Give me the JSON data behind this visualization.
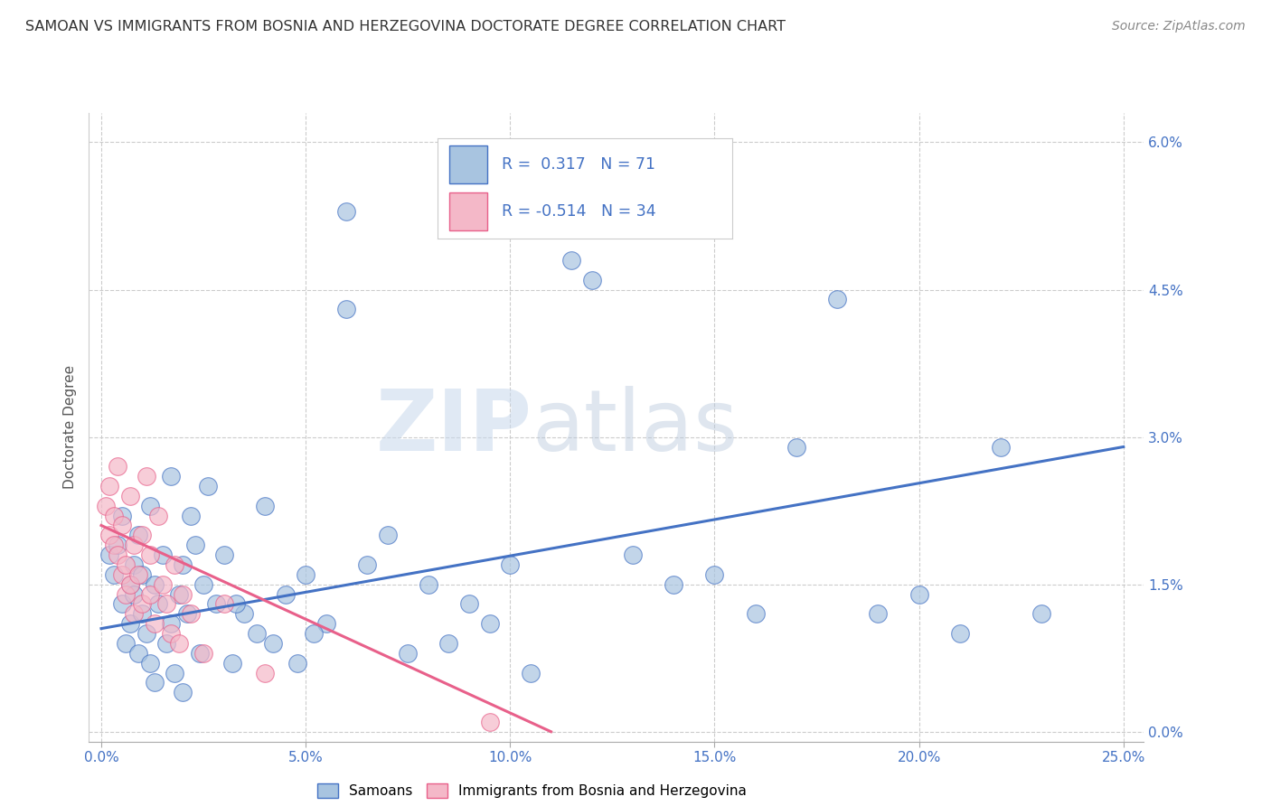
{
  "title": "SAMOAN VS IMMIGRANTS FROM BOSNIA AND HERZEGOVINA DOCTORATE DEGREE CORRELATION CHART",
  "source": "Source: ZipAtlas.com",
  "xlabel_vals": [
    0.0,
    5.0,
    10.0,
    15.0,
    20.0,
    25.0
  ],
  "ylabel": "Doctorate Degree",
  "ylabel_vals": [
    0.0,
    1.5,
    3.0,
    4.5,
    6.0
  ],
  "xlim": [
    -0.3,
    25.5
  ],
  "ylim": [
    -0.1,
    6.3
  ],
  "blue_R": 0.317,
  "blue_N": 71,
  "pink_R": -0.514,
  "pink_N": 34,
  "blue_color": "#a8c4e0",
  "pink_color": "#f4b8c8",
  "blue_line_color": "#4472c4",
  "pink_line_color": "#e8608a",
  "legend_label_blue": "Samoans",
  "legend_label_pink": "Immigrants from Bosnia and Herzegovina",
  "watermark_zip": "ZIP",
  "watermark_atlas": "atlas",
  "blue_scatter_x": [
    0.2,
    0.3,
    0.4,
    0.5,
    0.5,
    0.6,
    0.7,
    0.7,
    0.8,
    0.8,
    0.9,
    0.9,
    1.0,
    1.0,
    1.1,
    1.2,
    1.2,
    1.3,
    1.3,
    1.4,
    1.5,
    1.6,
    1.7,
    1.7,
    1.8,
    1.9,
    2.0,
    2.0,
    2.1,
    2.2,
    2.3,
    2.4,
    2.5,
    2.6,
    2.8,
    3.0,
    3.2,
    3.5,
    3.8,
    4.0,
    4.2,
    4.5,
    5.0,
    5.5,
    6.0,
    6.5,
    7.0,
    7.5,
    8.0,
    8.5,
    9.0,
    9.5,
    10.0,
    10.5,
    11.5,
    12.0,
    13.0,
    14.0,
    15.0,
    16.0,
    17.0,
    18.0,
    19.0,
    20.0,
    21.0,
    22.0,
    23.0,
    3.3,
    4.8,
    5.2,
    6.0
  ],
  "blue_scatter_y": [
    1.8,
    1.6,
    1.9,
    1.3,
    2.2,
    0.9,
    1.5,
    1.1,
    1.4,
    1.7,
    0.8,
    2.0,
    1.2,
    1.6,
    1.0,
    0.7,
    2.3,
    1.5,
    0.5,
    1.3,
    1.8,
    0.9,
    2.6,
    1.1,
    0.6,
    1.4,
    1.7,
    0.4,
    1.2,
    2.2,
    1.9,
    0.8,
    1.5,
    2.5,
    1.3,
    1.8,
    0.7,
    1.2,
    1.0,
    2.3,
    0.9,
    1.4,
    1.6,
    1.1,
    4.3,
    1.7,
    2.0,
    0.8,
    1.5,
    0.9,
    1.3,
    1.1,
    1.7,
    0.6,
    4.8,
    4.6,
    1.8,
    1.5,
    1.6,
    1.2,
    2.9,
    4.4,
    1.2,
    1.4,
    1.0,
    2.9,
    1.2,
    1.3,
    0.7,
    1.0,
    5.3
  ],
  "pink_scatter_x": [
    0.1,
    0.2,
    0.2,
    0.3,
    0.3,
    0.4,
    0.4,
    0.5,
    0.5,
    0.6,
    0.6,
    0.7,
    0.7,
    0.8,
    0.8,
    0.9,
    1.0,
    1.0,
    1.1,
    1.2,
    1.2,
    1.3,
    1.4,
    1.5,
    1.6,
    1.7,
    1.8,
    1.9,
    2.0,
    2.2,
    2.5,
    3.0,
    4.0,
    9.5
  ],
  "pink_scatter_y": [
    2.3,
    2.5,
    2.0,
    2.2,
    1.9,
    2.7,
    1.8,
    2.1,
    1.6,
    1.7,
    1.4,
    2.4,
    1.5,
    1.9,
    1.2,
    1.6,
    2.0,
    1.3,
    2.6,
    1.4,
    1.8,
    1.1,
    2.2,
    1.5,
    1.3,
    1.0,
    1.7,
    0.9,
    1.4,
    1.2,
    0.8,
    1.3,
    0.6,
    0.1
  ],
  "blue_line_x": [
    0.0,
    25.0
  ],
  "blue_line_y": [
    1.05,
    2.9
  ],
  "pink_line_x": [
    0.0,
    11.0
  ],
  "pink_line_y": [
    2.1,
    0.0
  ]
}
